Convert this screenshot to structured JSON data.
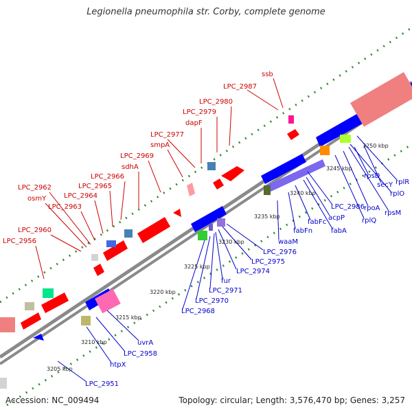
{
  "title": "Legionella pneumophila str. Corby, complete genome",
  "footer": {
    "accession": "Accession: NC_009494",
    "summary": "Topology: circular; Length: 3,576,470 bp; Genes: 3,257"
  },
  "colors": {
    "backbone": "#8c8c8c",
    "forward_label": "#cc0000",
    "reverse_label": "#0000cc",
    "forward_feature": "#ff0000",
    "reverse_feature": "#0000ff",
    "dotted_line": "#2e8b2e"
  },
  "scale_labels": [
    "3205 kbp",
    "3210 kbp",
    "3215 kbp",
    "3220 kbp",
    "3225 kbp",
    "3230 kbp",
    "3235 kbp",
    "3240 kbp",
    "3245 kbp",
    "3250 kbp"
  ],
  "forward_gene_labels": [
    "ssb",
    "LPC_2987",
    "LPC_2980",
    "LPC_2979",
    "dapF",
    "LPC_2977",
    "smpA",
    "LPC_2969",
    "sdhA",
    "LPC_2966",
    "LPC_2965",
    "LPC_2964",
    "LPC_2963",
    "LPC_2962",
    "osmY",
    "LPC_2960",
    "LPC_2956"
  ],
  "reverse_gene_labels": [
    "rplR",
    "rplO",
    "secY",
    "rpsD",
    "rpoA",
    "rpsM",
    "rplQ",
    "LPC_2986",
    "acpP",
    "fabA",
    "fabFc",
    "fabFn",
    "waaM",
    "LPC_2976",
    "LPC_2975",
    "LPC_2974",
    "LPC_2971",
    "fur",
    "LPC_2970",
    "LPC_2968",
    "uvrA",
    "LPC_2958",
    "htpX",
    "LPC_2951"
  ]
}
